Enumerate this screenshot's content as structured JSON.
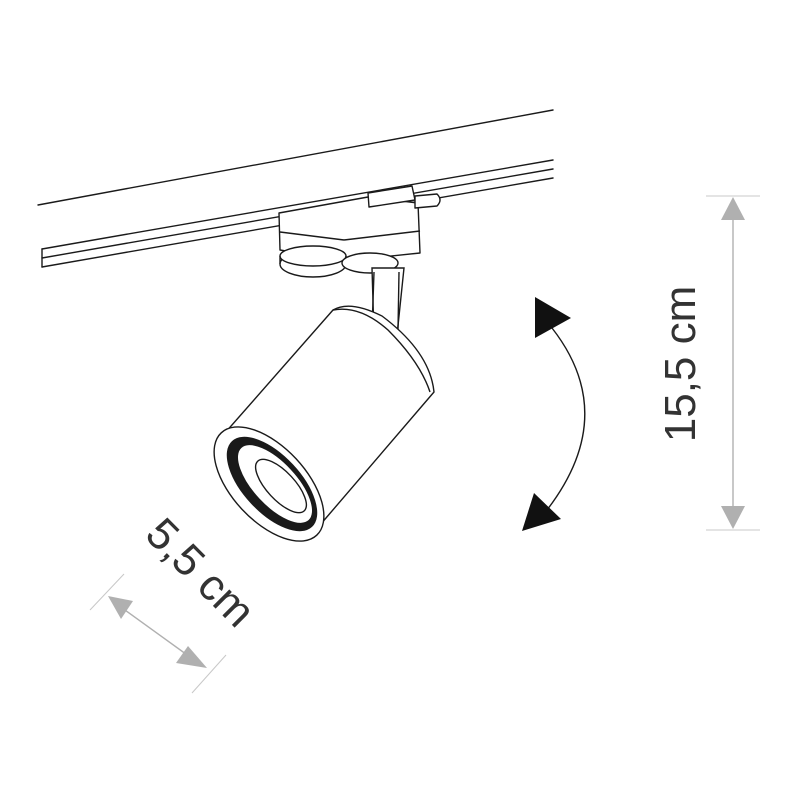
{
  "dimensions": {
    "height_label": "15,5 cm",
    "diameter_label": "5,5 cm"
  },
  "colors": {
    "line": "#1a1a1a",
    "dimension_arrow": "#b0b0b0",
    "dimension_text": "#333333",
    "rotation_arrow": "#111111"
  }
}
